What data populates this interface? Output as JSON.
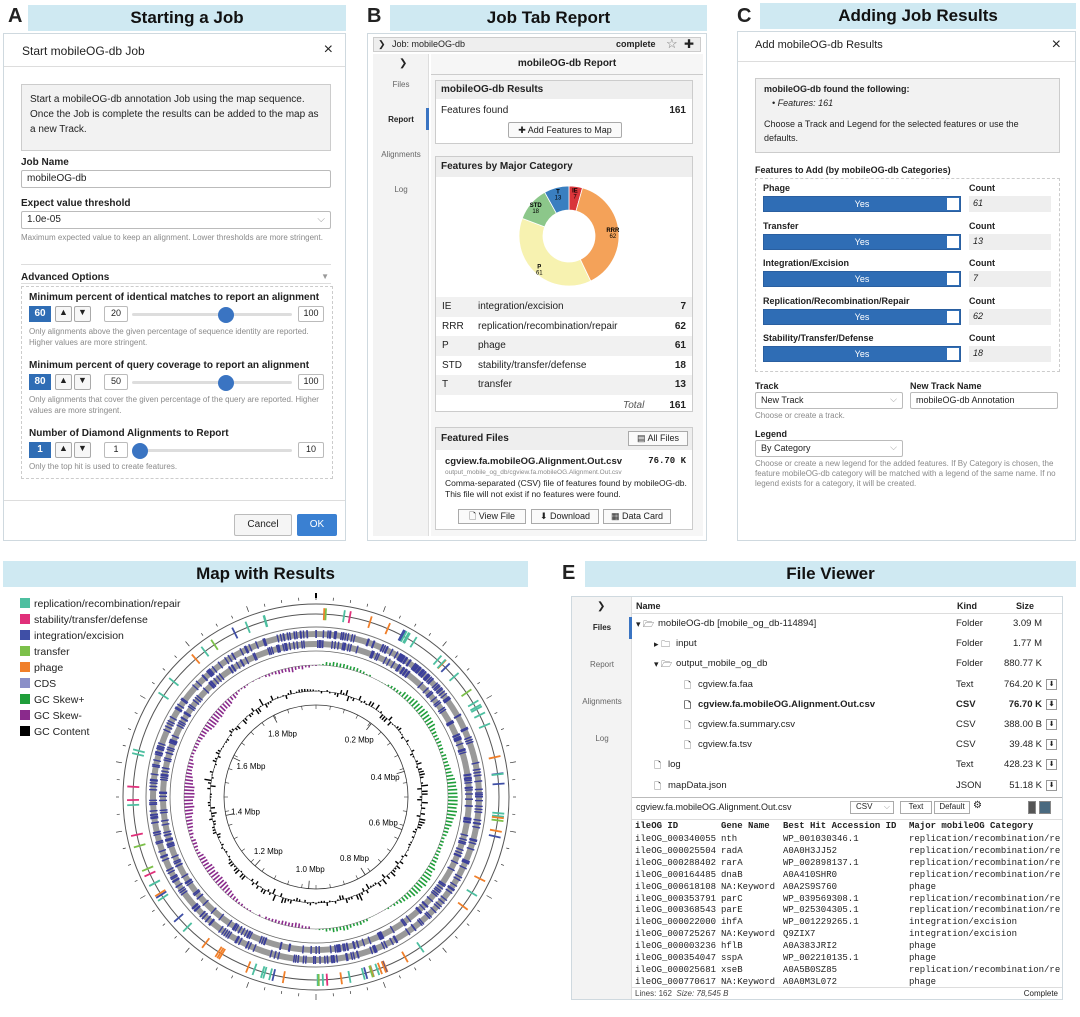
{
  "panel_letters": {
    "a": "A",
    "b": "B",
    "c": "C",
    "d": "D",
    "e": "E"
  },
  "panelA": {
    "header": "Starting a Job",
    "title": "Start mobileOG-db Job",
    "close": "×",
    "info": "Start a mobileOG-db annotation Job using the map sequence. Once the Job is complete the results can be added to the map as a new Track.",
    "job_name_label": "Job Name",
    "job_name_value": "mobileOG-db",
    "expect_label": "Expect value threshold",
    "expect_value": "1.0e-05",
    "expect_help": "Maximum expected value to keep an alignment. Lower thresholds are more stringent.",
    "advanced": "Advanced Options",
    "adv_arrow": "▼",
    "opt1": {
      "label": "Minimum percent of identical matches to report an alignment",
      "value": "60",
      "min": "20",
      "max": "100",
      "level_pct": 60,
      "help": "Only alignments above the given percentage of sequence identity are reported. Higher values are more stringent."
    },
    "opt2": {
      "label": "Minimum percent of query coverage to report an alignment",
      "value": "80",
      "min": "50",
      "max": "100",
      "level_pct": 60,
      "help": "Only alignments that cover the given percentage of the query are reported. Higher values are more stringent."
    },
    "opt3": {
      "label": "Number of Diamond Alignments to Report",
      "value": "1",
      "min": "1",
      "max": "10",
      "level_pct": 0,
      "help": "Only the top hit is used to create features."
    },
    "cancel": "Cancel",
    "ok": "OK"
  },
  "panelB": {
    "header": "Job Tab Report",
    "crumb": "Job: mobileOG-db",
    "status": "complete",
    "star": "☆",
    "plus": "✚",
    "tabs": [
      "Files",
      "Report",
      "Alignments",
      "Log"
    ],
    "report_title": "mobileOG-db Report",
    "results_title": "mobileOG-db Results",
    "features_found_label": "Features found",
    "features_found": "161",
    "add_btn": "Add Features to Map",
    "cat_title": "Features by Major Category",
    "table": [
      {
        "code": "IE",
        "name": "integration/excision",
        "count": "7"
      },
      {
        "code": "RRR",
        "name": "replication/recombination/repair",
        "count": "62"
      },
      {
        "code": "P",
        "name": "phage",
        "count": "61"
      },
      {
        "code": "STD",
        "name": "stability/transfer/defense",
        "count": "18"
      },
      {
        "code": "T",
        "name": "transfer",
        "count": "13"
      }
    ],
    "total_label": "Total",
    "total": "161",
    "featured": "Featured Files",
    "all_files": "All Files",
    "file_name": "cgview.fa.mobileOG.Alignment.Out.csv",
    "file_size": "76.70 K",
    "file_path": "output_mobile_og_db/cgview.fa.mobileOG.Alignment.Out.csv",
    "file_desc": "Comma-separated (CSV) file of features found by mobileOG-db. This file will not exist if no features were found.",
    "view": "View File",
    "download": "Download",
    "datacard": "Data Card"
  },
  "panelC": {
    "header": "Adding Job Results",
    "title": "Add mobileOG-db Results",
    "close": "×",
    "found": "mobileOG-db found the following:",
    "bullet": "Features: 161",
    "choose": "Choose a Track and Legend for the selected features or use the defaults.",
    "features_label": "Features to Add (by mobileOG-db Categories)",
    "count_label": "Count",
    "yes": "Yes",
    "cats": [
      {
        "name": "Phage",
        "count": "61"
      },
      {
        "name": "Transfer",
        "count": "13"
      },
      {
        "name": "Integration/Excision",
        "count": "7"
      },
      {
        "name": "Replication/Recombination/Repair",
        "count": "62"
      },
      {
        "name": "Stability/Transfer/Defense",
        "count": "18"
      }
    ],
    "track_label": "Track",
    "track_value": "New Track",
    "track_help": "Choose or create a track.",
    "new_track_label": "New Track Name",
    "new_track_value": "mobileOG-db Annotation",
    "legend_label": "Legend",
    "legend_value": "By Category",
    "legend_help": "Choose or create a new legend for the added features. If By Category is chosen, the feature mobileOG-db category will be matched with a legend of the same name. If no legend exists for a category, it will be created."
  },
  "panelD": {
    "header": "Map with Results",
    "legend": [
      {
        "label": "replication/recombination/repair",
        "color": "#4dbfa0"
      },
      {
        "label": "stability/transfer/defense",
        "color": "#e0307a"
      },
      {
        "label": "integration/excision",
        "color": "#3f4fa6"
      },
      {
        "label": "transfer",
        "color": "#7cc04a"
      },
      {
        "label": "phage",
        "color": "#f07f2a"
      },
      {
        "label": "CDS",
        "color": "#8a8fc8"
      },
      {
        "label": "GC Skew+",
        "color": "#1f9e3a"
      },
      {
        "label": "GC Skew-",
        "color": "#8a2a8c"
      },
      {
        "label": "GC Content",
        "color": "#000000"
      }
    ],
    "ticks": [
      "0.2 Mbp",
      "0.4 Mbp",
      "0.6 Mbp",
      "0.8 Mbp",
      "1.0 Mbp",
      "1.2 Mbp",
      "1.4 Mbp",
      "1.6 Mbp",
      "1.8 Mbp"
    ]
  },
  "panelE": {
    "header": "File Viewer",
    "tabs": [
      "Files",
      "Report",
      "Alignments",
      "Log"
    ],
    "col_name": "Name",
    "col_kind": "Kind",
    "col_size": "Size",
    "rows": [
      {
        "name": "mobileOG-db [mobile_og_db-114894]",
        "kind": "Folder",
        "size": "3.09 M",
        "icon": "▾ 🗁",
        "indent": 0
      },
      {
        "name": "input",
        "kind": "Folder",
        "size": "1.77 M",
        "icon": "▸ 🗀",
        "indent": 1
      },
      {
        "name": "output_mobile_og_db",
        "kind": "Folder",
        "size": "880.77 K",
        "icon": "▾ 🗁",
        "indent": 1
      },
      {
        "name": "cgview.fa.faa",
        "kind": "Text",
        "size": "764.20 K",
        "icon": "🗋",
        "indent": 2
      },
      {
        "name": "cgview.fa.mobileOG.Alignment.Out.csv",
        "kind": "CSV",
        "size": "76.70 K",
        "icon": "🗋",
        "indent": 2
      },
      {
        "name": "cgview.fa.summary.csv",
        "kind": "CSV",
        "size": "388.00 B",
        "icon": "🗋",
        "indent": 2
      },
      {
        "name": "cgview.fa.tsv",
        "kind": "CSV",
        "size": "39.48 K",
        "icon": "🗋",
        "indent": 2
      },
      {
        "name": "log",
        "kind": "Text",
        "size": "428.23 K",
        "icon": "🗋",
        "indent": 1
      },
      {
        "name": "mapData.json",
        "kind": "JSON",
        "size": "51.18 K",
        "icon": "🗋",
        "indent": 1
      }
    ],
    "viewer_file": "cgview.fa.mobileOG.Alignment.Out.csv",
    "fmt": "CSV",
    "text_btn": "Text",
    "default_btn": "Default",
    "headers": [
      "ileOG ID",
      "Gene Name",
      "Best Hit Accession ID",
      "Major mobileOG Category"
    ],
    "data": [
      [
        "ileOG_000340055",
        "nth",
        "WP_001030346.1",
        "replication/recombination/re"
      ],
      [
        "ileOG_000025504",
        "radA",
        "A0A0H3JJ52",
        "replication/recombination/re"
      ],
      [
        "ileOG_000288402",
        "rarA",
        "WP_002898137.1",
        "replication/recombination/re"
      ],
      [
        "ileOG_000164485",
        "dnaB",
        "A0A410SHR0",
        "replication/recombination/re"
      ],
      [
        "ileOG_000618108",
        "NA:Keyword",
        "A0A2S9S760",
        "phage"
      ],
      [
        "ileOG_000353791",
        "parC",
        "WP_039569308.1",
        "replication/recombination/re"
      ],
      [
        "ileOG_000368543",
        "parE",
        "WP_025304305.1",
        "replication/recombination/re"
      ],
      [
        "ileOG_000022000",
        "ihfA",
        "WP_001229265.1",
        "integration/excision"
      ],
      [
        "ileOG_000725267",
        "NA:Keyword",
        "Q9ZIX7",
        "integration/excision"
      ],
      [
        "ileOG_000003236",
        "hflB",
        "A0A383JRI2",
        "phage"
      ],
      [
        "ileOG_000354047",
        "sspA",
        "WP_002210135.1",
        "phage"
      ],
      [
        "ileOG_000025681",
        "xseB",
        "A0A5B0SZ85",
        "replication/recombination/re"
      ],
      [
        "ileOG_000770617",
        "NA:Keyword",
        "A0A0M3L072",
        "phage"
      ]
    ],
    "lines": "Lines: 162",
    "size": "Size: 78,545 B",
    "status": "Complete"
  },
  "chart_data": {
    "type": "pie",
    "title": "Features by Major Category",
    "categories": [
      "IE",
      "RRR",
      "P",
      "STD",
      "T"
    ],
    "values": [
      7,
      62,
      61,
      18,
      13
    ],
    "colors": [
      "#d9353a",
      "#f4a259",
      "#f7f2b0",
      "#8cc78a",
      "#3a7fc0"
    ]
  }
}
